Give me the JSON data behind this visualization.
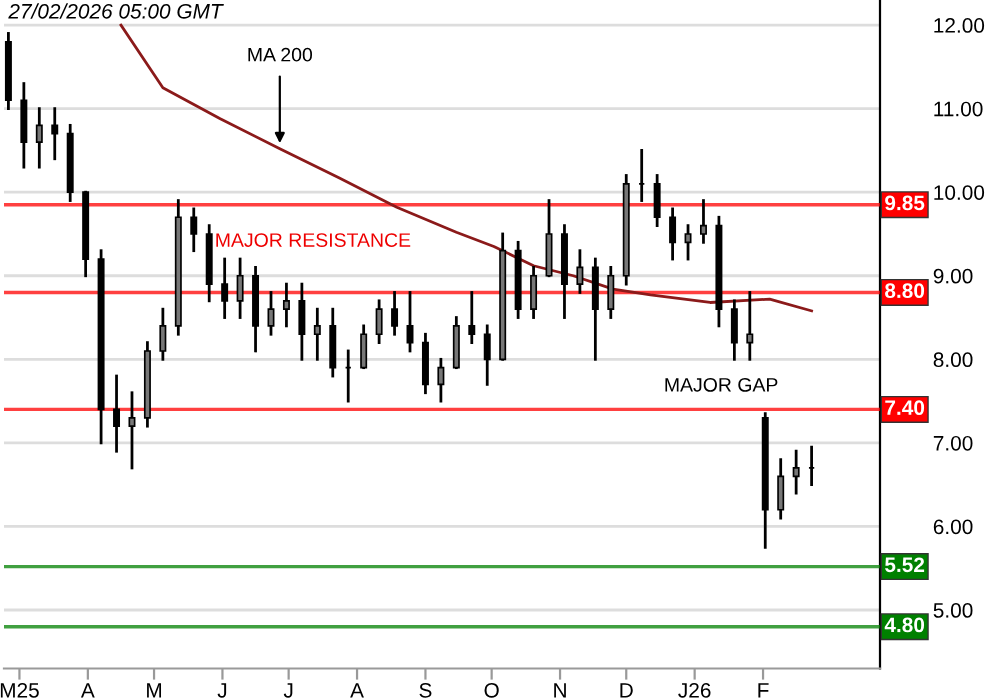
{
  "chart_data": {
    "type": "candlestick",
    "x": [
      "2025-02-24",
      "2025-03-03",
      "2025-03-10",
      "2025-03-17",
      "2025-03-24",
      "2025-03-31",
      "2025-04-07",
      "2025-04-14",
      "2025-04-21",
      "2025-04-28",
      "2025-05-05",
      "2025-05-12",
      "2025-05-19",
      "2025-05-26",
      "2025-06-02",
      "2025-06-09",
      "2025-06-16",
      "2025-06-23",
      "2025-06-30",
      "2025-07-07",
      "2025-07-14",
      "2025-07-21",
      "2025-07-28",
      "2025-08-04",
      "2025-08-11",
      "2025-08-18",
      "2025-08-25",
      "2025-09-01",
      "2025-09-08",
      "2025-09-15",
      "2025-09-22",
      "2025-09-29",
      "2025-10-06",
      "2025-10-13",
      "2025-10-20",
      "2025-10-27",
      "2025-11-03",
      "2025-11-10",
      "2025-11-17",
      "2025-11-24",
      "2025-12-01",
      "2025-12-08",
      "2025-12-15",
      "2025-12-22",
      "2025-12-29",
      "2026-01-05",
      "2026-01-12",
      "2026-01-19",
      "2026-01-26",
      "2026-02-02",
      "2026-02-09",
      "2026-02-16",
      "2026-02-23"
    ],
    "ohlc": [
      [
        11.8,
        11.9,
        11.0,
        11.1
      ],
      [
        11.1,
        11.3,
        10.3,
        10.6
      ],
      [
        10.6,
        11.0,
        10.3,
        10.8
      ],
      [
        10.8,
        11.0,
        10.4,
        10.7
      ],
      [
        10.7,
        10.8,
        9.9,
        10.0
      ],
      [
        10.0,
        10.0,
        9.0,
        9.2
      ],
      [
        9.2,
        9.3,
        7.0,
        7.4
      ],
      [
        7.4,
        7.8,
        6.9,
        7.2
      ],
      [
        7.2,
        7.6,
        6.7,
        7.3
      ],
      [
        7.3,
        8.2,
        7.2,
        8.1
      ],
      [
        8.1,
        8.6,
        8.0,
        8.4
      ],
      [
        8.4,
        9.9,
        8.3,
        9.7
      ],
      [
        9.7,
        9.8,
        9.3,
        9.5
      ],
      [
        9.5,
        9.6,
        8.7,
        8.9
      ],
      [
        8.9,
        9.2,
        8.5,
        8.7
      ],
      [
        8.7,
        9.2,
        8.5,
        9.0
      ],
      [
        9.0,
        9.1,
        8.1,
        8.4
      ],
      [
        8.4,
        8.8,
        8.3,
        8.6
      ],
      [
        8.6,
        8.9,
        8.4,
        8.7
      ],
      [
        8.7,
        8.9,
        8.0,
        8.3
      ],
      [
        8.3,
        8.6,
        8.0,
        8.4
      ],
      [
        8.4,
        8.6,
        7.8,
        7.9
      ],
      [
        7.9,
        8.1,
        7.5,
        7.9
      ],
      [
        7.9,
        8.4,
        7.9,
        8.3
      ],
      [
        8.3,
        8.7,
        8.2,
        8.6
      ],
      [
        8.6,
        8.8,
        8.3,
        8.4
      ],
      [
        8.4,
        8.8,
        8.1,
        8.2
      ],
      [
        8.2,
        8.3,
        7.6,
        7.7
      ],
      [
        7.7,
        8.0,
        7.5,
        7.9
      ],
      [
        7.9,
        8.5,
        7.9,
        8.4
      ],
      [
        8.4,
        8.8,
        8.2,
        8.3
      ],
      [
        8.3,
        8.4,
        7.7,
        8.0
      ],
      [
        8.0,
        9.5,
        8.0,
        9.3
      ],
      [
        9.3,
        9.4,
        8.5,
        8.6
      ],
      [
        8.6,
        9.1,
        8.5,
        9.0
      ],
      [
        9.0,
        9.9,
        9.0,
        9.5
      ],
      [
        9.5,
        9.6,
        8.5,
        8.9
      ],
      [
        8.9,
        9.3,
        8.8,
        9.1
      ],
      [
        9.1,
        9.2,
        8.0,
        8.6
      ],
      [
        8.6,
        9.1,
        8.5,
        9.0
      ],
      [
        9.0,
        10.2,
        8.9,
        10.1
      ],
      [
        10.1,
        10.5,
        9.9,
        10.1
      ],
      [
        10.1,
        10.2,
        9.6,
        9.7
      ],
      [
        9.7,
        9.8,
        9.2,
        9.4
      ],
      [
        9.4,
        9.6,
        9.2,
        9.5
      ],
      [
        9.5,
        9.9,
        9.4,
        9.6
      ],
      [
        9.6,
        9.7,
        8.4,
        8.6
      ],
      [
        8.6,
        8.7,
        8.0,
        8.2
      ],
      [
        8.2,
        8.8,
        8.0,
        8.3
      ],
      [
        7.3,
        7.35,
        5.75,
        6.2
      ],
      [
        6.2,
        6.8,
        6.1,
        6.6
      ],
      [
        6.6,
        6.9,
        6.4,
        6.7
      ],
      [
        6.7,
        6.95,
        6.5,
        6.7
      ]
    ],
    "color": "#000000",
    "series": [
      {
        "type": "line",
        "color": "#8b1a1a",
        "x": [
          "2025-04-16",
          "2025-05-05",
          "2025-05-31",
          "2025-06-27",
          "2025-07-24",
          "2025-08-19",
          "2025-09-15",
          "2025-10-02",
          "2025-10-20",
          "2025-11-07",
          "2025-11-25",
          "2025-12-12",
          "2026-01-08",
          "2026-02-04",
          "2026-02-23"
        ],
        "values": [
          12.0,
          11.25,
          10.88,
          10.52,
          10.17,
          9.82,
          9.52,
          9.35,
          9.12,
          9.0,
          8.84,
          8.77,
          8.68,
          8.72,
          8.58
        ]
      }
    ],
    "xlim": [
      "2025-02-22",
      "2026-03-26"
    ],
    "xticks": [
      {
        "value": "2025-03-01",
        "label": "M25"
      },
      {
        "value": "2025-04-01",
        "label": "A"
      },
      {
        "value": "2025-05-01",
        "label": "M"
      },
      {
        "value": "2025-06-01",
        "label": "J"
      },
      {
        "value": "2025-07-01",
        "label": "J"
      },
      {
        "value": "2025-08-01",
        "label": "A"
      },
      {
        "value": "2025-09-01",
        "label": "S"
      },
      {
        "value": "2025-10-01",
        "label": "O"
      },
      {
        "value": "2025-11-01",
        "label": "N"
      },
      {
        "value": "2025-12-01",
        "label": "D"
      },
      {
        "value": "2026-01-01",
        "label": "J26"
      },
      {
        "value": "2026-02-01",
        "label": "F"
      }
    ],
    "ylim": [
      4.3,
      12.3
    ],
    "yticks": [
      {
        "value": 5,
        "label": "5.00"
      },
      {
        "value": 6,
        "label": "6.00"
      },
      {
        "value": 7,
        "label": "7.00"
      },
      {
        "value": 8,
        "label": "8.00"
      },
      {
        "value": 9,
        "label": "9.00"
      },
      {
        "value": 10,
        "label": "10.00"
      },
      {
        "value": 11,
        "label": "11.00"
      },
      {
        "value": 12,
        "label": "12.00"
      }
    ],
    "grid": "y",
    "ref_lines": [
      {
        "axis": "y",
        "value": 9.85,
        "label": "9.85",
        "color": "#ff0000"
      },
      {
        "axis": "y",
        "value": 8.8,
        "label": "8.80",
        "color": "#ff0000"
      },
      {
        "axis": "y",
        "value": 7.4,
        "label": "7.40",
        "color": "#ff0000"
      },
      {
        "axis": "y",
        "value": 5.52,
        "label": "5.52",
        "color": "#008000"
      },
      {
        "axis": "y",
        "value": 4.8,
        "label": "4.80",
        "color": "#008000"
      }
    ],
    "annotations": [
      "27/02/2026 05:00 GMT",
      {
        "text": "MA 200",
        "x": "2025-06-27",
        "y": 10.52
      },
      {
        "text": "MAJOR RESISTANCE",
        "x": "2025-07-12",
        "y": 8.8
      },
      {
        "text": "MAJOR GAP",
        "x": "2026-01-13",
        "y": 7.4
      }
    ]
  }
}
